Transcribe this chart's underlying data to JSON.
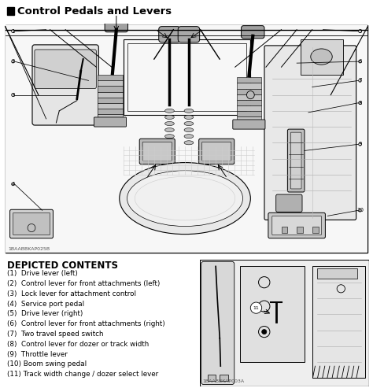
{
  "title": "Control Pedals and Levers",
  "bg_color": "#ffffff",
  "text_color": "#000000",
  "depicted_contents_title": "DEPICTED CONTENTS",
  "items": [
    "(1)  Drive lever (left)",
    "(2)  Control lever for front attachments (left)",
    "(3)  Lock lever for attachment control",
    "(4)  Service port pedal",
    "(5)  Drive lever (right)",
    "(6)  Control lever for front attachments (right)",
    "(7)  Two travel speed switch",
    "(8)  Control lever for dozer or track width",
    "(9)  Throttle lever",
    "(10) Boom swing pedal",
    "(11) Track width change / dozer select lever"
  ],
  "code1": "1BAABBKAP025B",
  "code2": "1BAABBKAP003A",
  "fig_width": 4.74,
  "fig_height": 4.93,
  "gray_light": "#d8d8d8",
  "gray_med": "#b8b8b8",
  "gray_dark": "#909090",
  "gray_bg": "#f0f0f0"
}
